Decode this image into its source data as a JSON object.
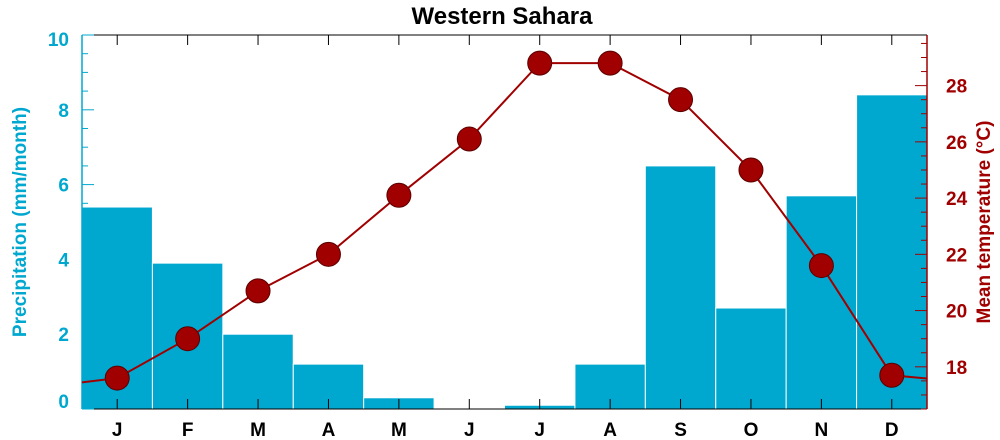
{
  "chart_data": {
    "type": "bar+line",
    "title": "Western Sahara",
    "categories": [
      "J",
      "F",
      "M",
      "A",
      "M",
      "J",
      "J",
      "A",
      "S",
      "O",
      "N",
      "D"
    ],
    "series": [
      {
        "name": "Precipitation",
        "type": "bar",
        "axis": "left",
        "color": "#00a8d0",
        "values": [
          5.4,
          3.9,
          2.0,
          1.2,
          0.3,
          0.0,
          0.1,
          1.2,
          6.5,
          2.7,
          5.7,
          8.4
        ]
      },
      {
        "name": "Mean temperature",
        "type": "line",
        "axis": "right",
        "color": "#a00000",
        "values": [
          17.6,
          19.0,
          20.7,
          22.0,
          24.1,
          26.1,
          28.8,
          28.8,
          27.5,
          25.0,
          21.6,
          17.7
        ]
      }
    ],
    "y_left": {
      "label": "Precipitation (mm/month)",
      "range": [
        0,
        10
      ],
      "ticks": [
        "0",
        "2",
        "4",
        "6",
        "8",
        "10"
      ],
      "color": "#00a8d0"
    },
    "y_right": {
      "label": "Mean temperature (°C)",
      "range": [
        16.5,
        29.8
      ],
      "ticks": [
        "18",
        "20",
        "22",
        "24",
        "26",
        "28"
      ],
      "color": "#a00000"
    },
    "grid": false,
    "legend": "none"
  }
}
